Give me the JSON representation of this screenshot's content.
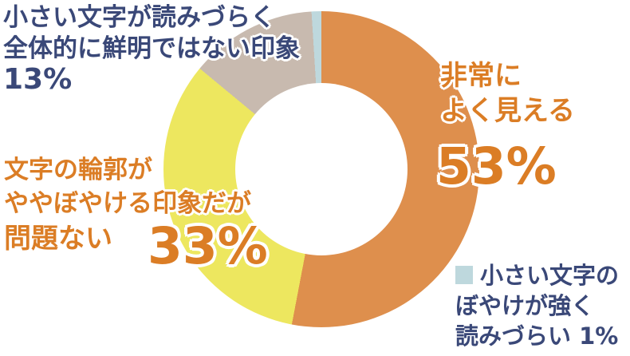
{
  "colors": {
    "background": "#FFFFFF",
    "navy_text": "#3A4878",
    "orange_text": "#DB7D25",
    "segment_orange": "#DE8F4D",
    "segment_yellow": "#EDE75F",
    "segment_gray": "#C8BAAF",
    "segment_blue": "#BED8DD"
  },
  "chart_data": {
    "type": "pie",
    "variant": "donut",
    "direction": "clockwise",
    "start_angle_deg": 0,
    "inner_radius_ratio": 0.55,
    "unit": "%",
    "categories": [
      "非常によく見える",
      "文字の輪郭がややぼやける印象だが問題ない",
      "小さい文字が読みづらく全体的に鮮明ではない印象",
      "小さい文字のぼやけが強く読みづらい"
    ],
    "values": [
      53,
      33,
      13,
      1
    ],
    "colors": [
      "#DE8F4D",
      "#EDE75F",
      "#C8BAAF",
      "#BED8DD"
    ],
    "legend_position": "labels-around-chart"
  },
  "labels": {
    "very_visible": {
      "line1": "非常に",
      "line2": "よく見える",
      "pct": "53%"
    },
    "slightly_blurry_ok": {
      "line1": "文字の輪郭が",
      "line2": "ややぼやける印象だが",
      "line3": "問題ない",
      "pct": "33%"
    },
    "small_text_hard": {
      "line1": "小さい文字が読みづらく",
      "line2": "全体的に鮮明ではない印象",
      "pct": "13%"
    },
    "strong_blur": {
      "line1": "小さい文字の",
      "line2": "ぼやけが強く",
      "line3": "読みづらい 1%"
    }
  }
}
